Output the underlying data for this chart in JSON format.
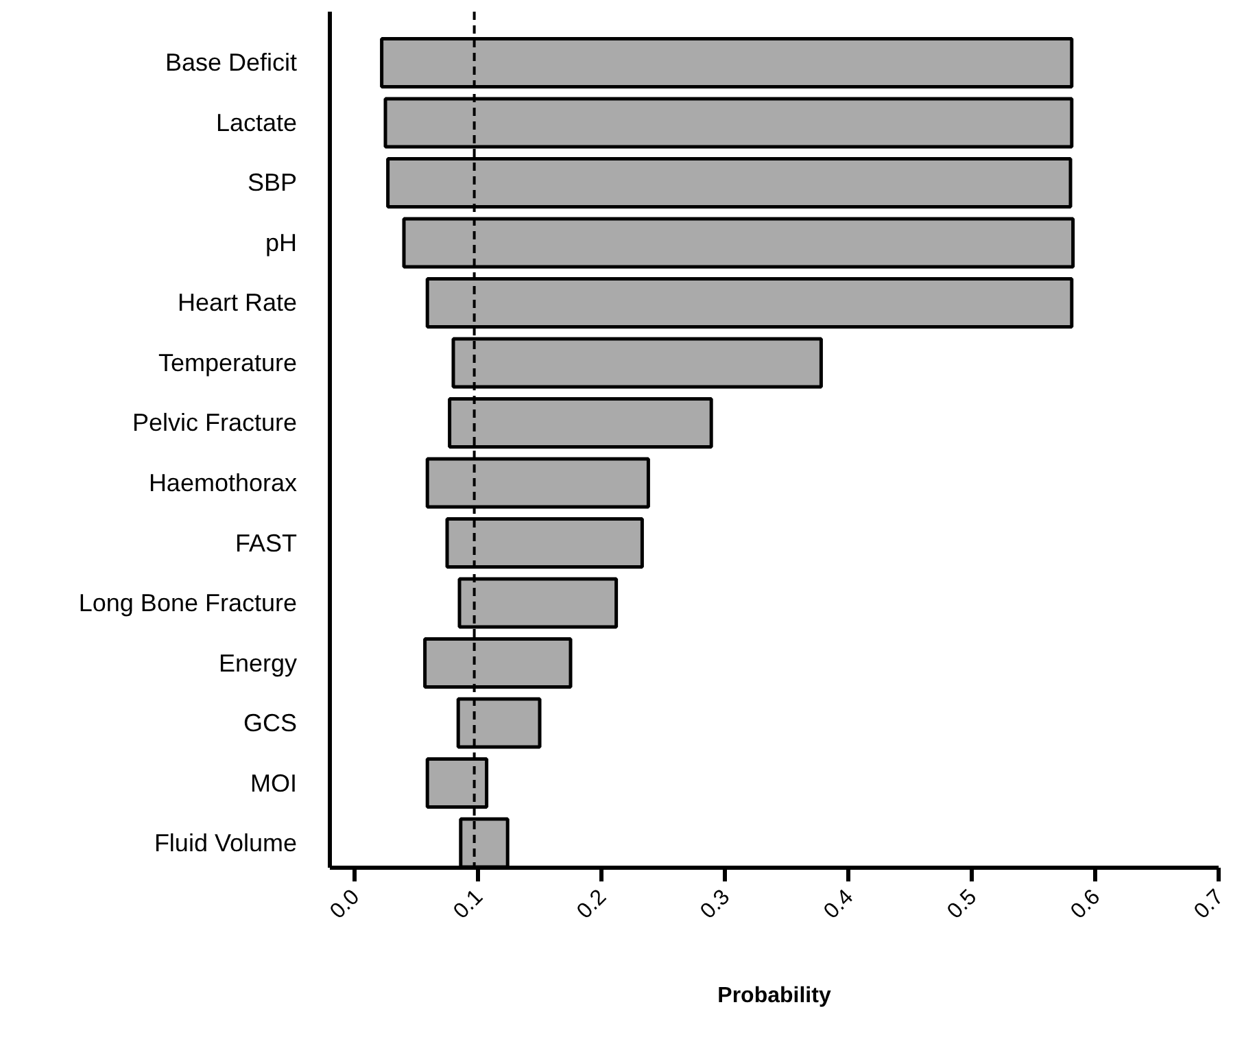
{
  "chart_data": {
    "type": "bar",
    "orientation": "horizontal",
    "xlabel": "Probability",
    "categories": [
      "Base Deficit",
      "Lactate",
      "SBP",
      "pH",
      "Heart Rate",
      "Temperature",
      "Pelvic Fracture",
      "Haemothorax",
      "FAST",
      "Long Bone Fracture",
      "Energy",
      "GCS",
      "MOI",
      "Fluid Volume"
    ],
    "base": [
      0.022,
      0.025,
      0.027,
      0.04,
      0.059,
      0.08,
      0.077,
      0.059,
      0.075,
      0.085,
      0.057,
      0.084,
      0.059,
      0.086
    ],
    "values": [
      0.559,
      0.556,
      0.553,
      0.542,
      0.522,
      0.298,
      0.212,
      0.179,
      0.158,
      0.127,
      0.118,
      0.066,
      0.048,
      0.038
    ],
    "color": "#aaaaaa",
    "xlim": [
      -0.02,
      0.7
    ],
    "xticks": [
      {
        "value": 0,
        "label": "0.0"
      },
      0.1,
      0.2,
      0.3,
      0.4,
      0.5,
      0.6,
      0.7
    ],
    "ref_lines": [
      {
        "axis": "x",
        "value": 0.097,
        "color": "#000000",
        "line_style": "dashed"
      }
    ],
    "grid": false
  }
}
